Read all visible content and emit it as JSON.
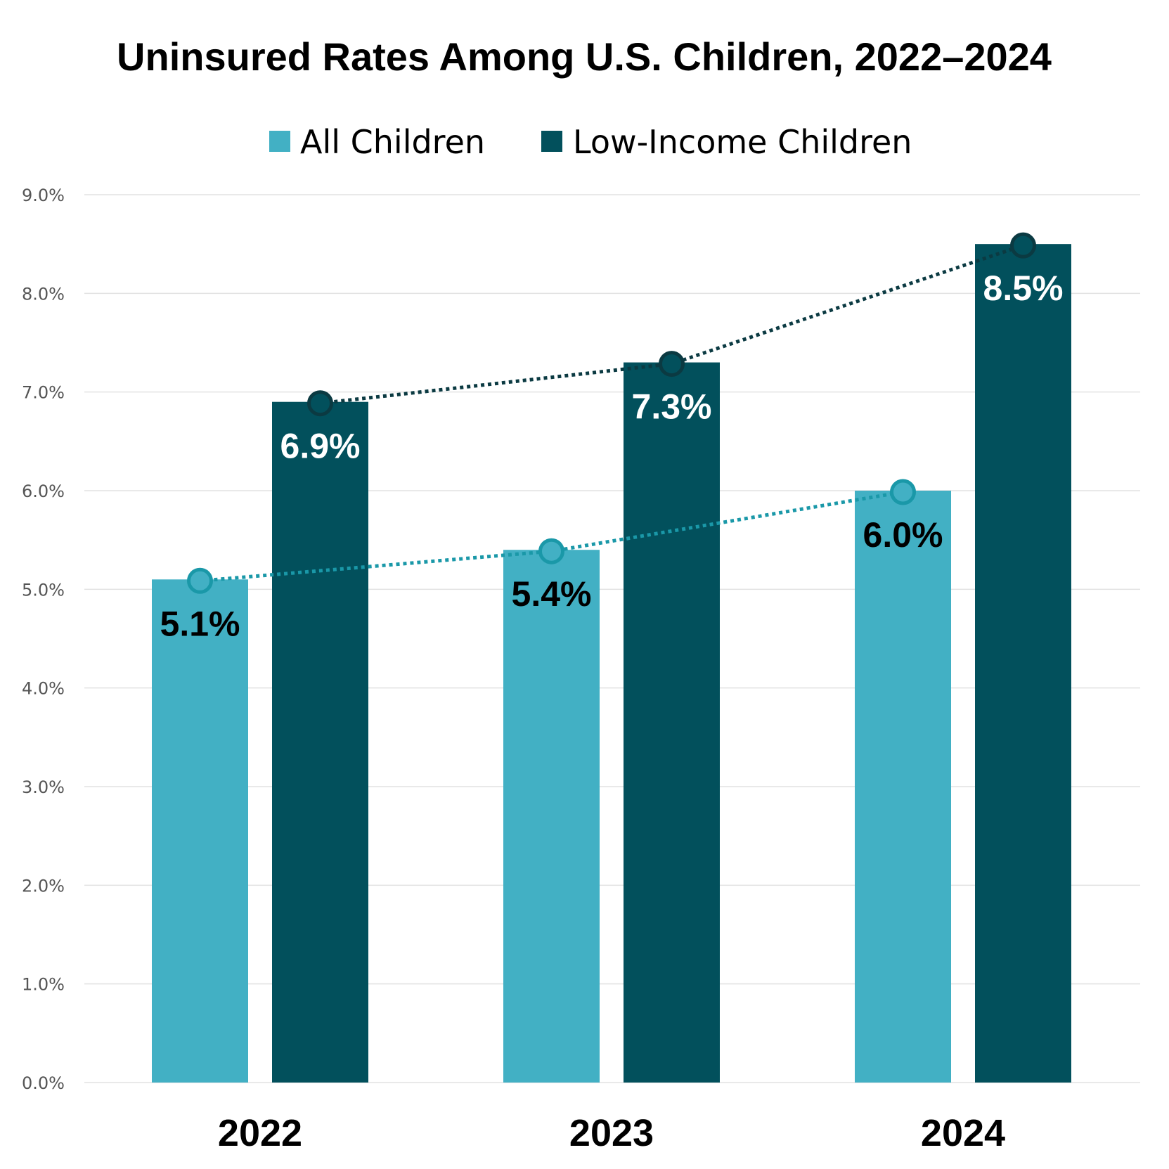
{
  "chart_data": {
    "type": "bar",
    "title": "Uninsured Rates Among U.S. Children, 2022–2024",
    "categories": [
      "2022",
      "2023",
      "2024"
    ],
    "series": [
      {
        "name": "All Children",
        "values": [
          5.1,
          5.4,
          6.0
        ],
        "labels": [
          "5.1%",
          "5.4%",
          "6.0%"
        ],
        "color": "#42b0c4",
        "line_color": "#1a98a8",
        "label_color": "#000000"
      },
      {
        "name": "Low-Income Children",
        "values": [
          6.9,
          7.3,
          8.5
        ],
        "labels": [
          "6.9%",
          "7.3%",
          "8.5%"
        ],
        "color": "#02505c",
        "line_color": "#0b3a42",
        "label_color": "#ffffff"
      }
    ],
    "ylim": [
      0,
      9
    ],
    "yticks": [
      0,
      1,
      2,
      3,
      4,
      5,
      6,
      7,
      8,
      9
    ],
    "ytick_labels": [
      "0.0%",
      "1.0%",
      "2.0%",
      "3.0%",
      "4.0%",
      "5.0%",
      "6.0%",
      "7.0%",
      "8.0%",
      "9.0%"
    ],
    "xlabel": "",
    "ylabel": "",
    "grid": true,
    "legend_position": "top-center",
    "overlay": "dotted trend line with circle markers per series"
  }
}
